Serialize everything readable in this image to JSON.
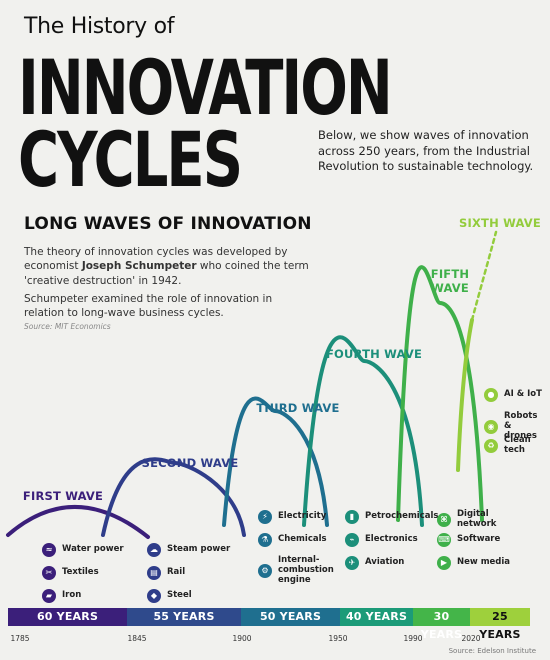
{
  "header": {
    "pre_title": "The History of",
    "title_line_1": "INNOVATION",
    "title_line_2": "CYCLES",
    "intro": "Below, we show waves of innovation across 250 years, from the Industrial Revolution to sustainable technology."
  },
  "section": {
    "title": "LONG WAVES OF INNOVATION",
    "paragraph_1_before": "The theory of innovation cycles was developed by economist ",
    "paragraph_1_name": "Joseph Schumpeter",
    "paragraph_1_after": " who coined the term 'creative destruction' in 1942.",
    "paragraph_2": "Schumpeter examined the role of innovation in relation to long-wave business cycles.",
    "source": "Source: MIT Economics"
  },
  "footer": {
    "source": "Source: Edelson Institute"
  },
  "chart_data": {
    "type": "line",
    "xlim": [
      1785,
      2025
    ],
    "x_ticks": [
      1785,
      1845,
      1900,
      1950,
      1990,
      2020
    ],
    "waves": [
      {
        "name": "FIRST WAVE",
        "start": 1785,
        "end": 1845,
        "duration": "60 YEARS",
        "color": "#3b1f7a",
        "band_color": "#3b1f7a",
        "items": [
          {
            "label": "Water power",
            "icon": "water-icon"
          },
          {
            "label": "Textiles",
            "icon": "textiles-icon"
          },
          {
            "label": "Iron",
            "icon": "iron-icon"
          }
        ]
      },
      {
        "name": "SECOND WAVE",
        "start": 1845,
        "end": 1900,
        "duration": "55 YEARS",
        "color": "#2f3d8a",
        "band_color": "#2f4a8c",
        "items": [
          {
            "label": "Steam power",
            "icon": "steam-icon"
          },
          {
            "label": "Rail",
            "icon": "rail-icon"
          },
          {
            "label": "Steel",
            "icon": "steel-icon"
          }
        ]
      },
      {
        "name": "THIRD WAVE",
        "start": 1900,
        "end": 1950,
        "duration": "50 YEARS",
        "color": "#1f6f8f",
        "band_color": "#1f6f8f",
        "items": [
          {
            "label": "Electricity",
            "icon": "electricity-icon"
          },
          {
            "label": "Chemicals",
            "icon": "chemicals-icon"
          },
          {
            "label": "Internal-combustion engine",
            "icon": "engine-icon"
          }
        ]
      },
      {
        "name": "FOURTH WAVE",
        "start": 1950,
        "end": 1990,
        "duration": "40 YEARS",
        "color": "#1c8f7a",
        "band_color": "#1c9b78",
        "items": [
          {
            "label": "Petrochemicals",
            "icon": "petrochemicals-icon"
          },
          {
            "label": "Electronics",
            "icon": "electronics-icon"
          },
          {
            "label": "Aviation",
            "icon": "aviation-icon"
          }
        ]
      },
      {
        "name": "FIFTH WAVE",
        "start": 1990,
        "end": 2020,
        "duration": "30 YEARS",
        "color": "#3fb04a",
        "band_color": "#44b549",
        "items": [
          {
            "label": "Digital network",
            "icon": "network-icon"
          },
          {
            "label": "Software",
            "icon": "software-icon"
          },
          {
            "label": "New media",
            "icon": "media-icon"
          }
        ]
      },
      {
        "name": "SIXTH WAVE",
        "start": 2020,
        "end": 2045,
        "duration": "25 YEARS",
        "color": "#93cc3c",
        "band_color": "#9ed03c",
        "items": [
          {
            "label": "AI & IoT",
            "icon": "ai-icon"
          },
          {
            "label": "Robots & drones",
            "icon": "robot-icon"
          },
          {
            "label": "Clean tech",
            "icon": "cleantech-icon"
          }
        ]
      }
    ]
  }
}
